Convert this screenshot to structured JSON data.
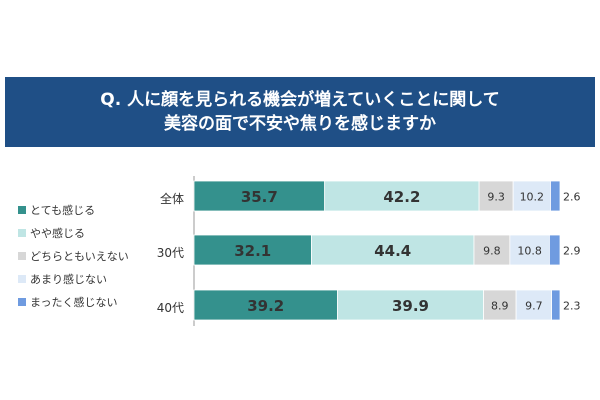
{
  "title": {
    "line1": "Q. 人に顔を見られる機会が増えていくことに関して",
    "line2": "美容の面で不安や焦りを感じますか"
  },
  "colors": {
    "title_bg": "#1f4f86",
    "series": [
      "#34918d",
      "#bfe5e4",
      "#d7d7d7",
      "#dde9f7",
      "#6f9be0"
    ]
  },
  "legend": {
    "items": [
      "とても感じる",
      "やや感じる",
      "どちらともいえない",
      "あまり感じない",
      "まったく感じない"
    ]
  },
  "chart_data": {
    "type": "bar",
    "orientation": "horizontal",
    "stacked": true,
    "percent_stacked": true,
    "title": "Q. 人に顔を見られる機会が増えていくことに関して 美容の面で不安や焦りを感じますか",
    "categories": [
      "全体",
      "30代",
      "40代"
    ],
    "series": [
      {
        "name": "とても感じる",
        "values": [
          35.7,
          32.1,
          39.2
        ]
      },
      {
        "name": "やや感じる",
        "values": [
          42.2,
          44.4,
          39.9
        ]
      },
      {
        "name": "どちらともいえない",
        "values": [
          9.3,
          9.8,
          8.9
        ]
      },
      {
        "name": "あまり感じない",
        "values": [
          10.2,
          10.8,
          9.7
        ]
      },
      {
        "name": "まったく感じない",
        "values": [
          2.6,
          2.9,
          2.3
        ]
      }
    ],
    "xlim": [
      0,
      100
    ],
    "grid": false,
    "legend_position": "left"
  }
}
